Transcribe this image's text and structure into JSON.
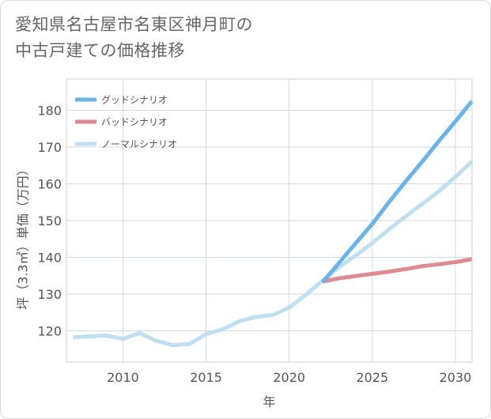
{
  "title_lines": [
    "愛知県名古屋市名東区神月町の",
    "中古戸建ての価格推移"
  ],
  "chart_data": {
    "type": "line",
    "xlabel": "年",
    "ylabel": "坪（3.3㎡）単価（万円）",
    "xlim": [
      2006.6,
      2031
    ],
    "ylim": [
      111.5,
      188.5
    ],
    "x_ticks": [
      2010,
      2015,
      2020,
      2025,
      2030
    ],
    "y_ticks": [
      120,
      130,
      140,
      150,
      160,
      170,
      180
    ],
    "grid": true,
    "legend_position": "top-left",
    "series": [
      {
        "name": "グッドシナリオ",
        "color": "#6ab4ea",
        "width": 5,
        "x": [
          2022,
          2023,
          2024,
          2025,
          2026,
          2027,
          2028,
          2029,
          2030,
          2031
        ],
        "values": [
          133.2,
          138.5,
          143.8,
          149.1,
          155.0,
          160.6,
          166.0,
          171.6,
          177.0,
          182.5
        ]
      },
      {
        "name": "バッドシナリオ",
        "color": "#dd8a90",
        "width": 5,
        "x": [
          2022,
          2023,
          2024,
          2025,
          2026,
          2027,
          2028,
          2029,
          2030,
          2031
        ],
        "values": [
          133.4,
          134.3,
          134.9,
          135.5,
          136.1,
          136.8,
          137.6,
          138.1,
          138.7,
          139.5
        ]
      },
      {
        "name": "ノーマルシナリオ",
        "color": "#c0dff0",
        "width": 5,
        "x": [
          2007,
          2008,
          2009,
          2010,
          2011,
          2012,
          2013,
          2014,
          2015,
          2016,
          2017,
          2018,
          2019,
          2020,
          2021,
          2022,
          2023,
          2024,
          2025,
          2026,
          2027,
          2028,
          2029,
          2030,
          2031
        ],
        "values": [
          118.2,
          118.5,
          118.7,
          117.8,
          119.4,
          117.3,
          116.1,
          116.4,
          119.1,
          120.4,
          122.6,
          123.8,
          124.3,
          126.3,
          129.8,
          133.6,
          137.3,
          140.5,
          143.9,
          147.6,
          151.1,
          154.5,
          158.0,
          161.9,
          166.1
        ]
      }
    ]
  }
}
